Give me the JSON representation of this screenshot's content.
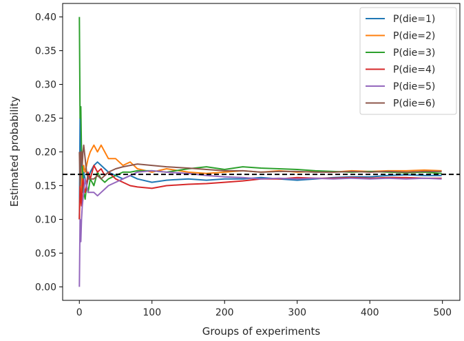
{
  "chart_data": {
    "type": "line",
    "title": "",
    "xlabel": "Groups of experiments",
    "ylabel": "Estimated probability",
    "xlim": [
      -23,
      524
    ],
    "ylim": [
      -0.02,
      0.42
    ],
    "x_ticks": [
      0,
      100,
      200,
      300,
      400,
      500
    ],
    "x_tick_labels": [
      "0",
      "100",
      "200",
      "300",
      "400",
      "500"
    ],
    "y_ticks": [
      0.0,
      0.05,
      0.1,
      0.15,
      0.2,
      0.25,
      0.3,
      0.35,
      0.4
    ],
    "y_tick_labels": [
      "0.00",
      "0.05",
      "0.10",
      "0.15",
      "0.20",
      "0.25",
      "0.30",
      "0.35",
      "0.40"
    ],
    "grid": false,
    "legend_position": "top-right",
    "reference_line": {
      "y": 0.1667,
      "style": "dashed",
      "color": "#000000"
    },
    "x": [
      0,
      1,
      2,
      3,
      4,
      5,
      6,
      8,
      10,
      12,
      15,
      20,
      25,
      30,
      35,
      40,
      50,
      60,
      70,
      80,
      100,
      120,
      150,
      175,
      200,
      225,
      250,
      275,
      300,
      325,
      350,
      375,
      400,
      425,
      450,
      475,
      499
    ],
    "series": [
      {
        "name": "P(die=1)",
        "color": "#1f77b4",
        "values": [
          0.1,
          0.25,
          0.2,
          0.15,
          0.16,
          0.14,
          0.17,
          0.16,
          0.15,
          0.16,
          0.17,
          0.18,
          0.185,
          0.18,
          0.175,
          0.17,
          0.165,
          0.16,
          0.165,
          0.16,
          0.155,
          0.158,
          0.16,
          0.158,
          0.16,
          0.16,
          0.162,
          0.16,
          0.158,
          0.16,
          0.162,
          0.163,
          0.163,
          0.165,
          0.166,
          0.165,
          0.165
        ]
      },
      {
        "name": "P(die=2)",
        "color": "#ff7f0e",
        "values": [
          0.1,
          0.15,
          0.13,
          0.14,
          0.18,
          0.17,
          0.18,
          0.17,
          0.18,
          0.19,
          0.2,
          0.21,
          0.2,
          0.21,
          0.2,
          0.19,
          0.19,
          0.18,
          0.185,
          0.175,
          0.17,
          0.175,
          0.17,
          0.168,
          0.17,
          0.172,
          0.17,
          0.172,
          0.17,
          0.171,
          0.17,
          0.172,
          0.171,
          0.172,
          0.172,
          0.173,
          0.172
        ]
      },
      {
        "name": "P(die=3)",
        "color": "#2ca02c",
        "values": [
          0.4,
          0.25,
          0.267,
          0.2,
          0.18,
          0.16,
          0.14,
          0.13,
          0.15,
          0.14,
          0.16,
          0.15,
          0.17,
          0.16,
          0.155,
          0.16,
          0.165,
          0.17,
          0.17,
          0.172,
          0.172,
          0.17,
          0.175,
          0.178,
          0.174,
          0.178,
          0.176,
          0.175,
          0.174,
          0.172,
          0.171,
          0.17,
          0.171,
          0.17,
          0.169,
          0.17,
          0.168
        ]
      },
      {
        "name": "P(die=4)",
        "color": "#d62728",
        "values": [
          0.1,
          0.15,
          0.13,
          0.12,
          0.15,
          0.16,
          0.15,
          0.14,
          0.15,
          0.17,
          0.16,
          0.18,
          0.17,
          0.175,
          0.165,
          0.17,
          0.16,
          0.155,
          0.15,
          0.148,
          0.146,
          0.15,
          0.152,
          0.153,
          0.155,
          0.157,
          0.16,
          0.16,
          0.162,
          0.161,
          0.161,
          0.162,
          0.161,
          0.162,
          0.162,
          0.161,
          0.161
        ]
      },
      {
        "name": "P(die=5)",
        "color": "#9467bd",
        "values": [
          0.0,
          0.1,
          0.067,
          0.1,
          0.12,
          0.13,
          0.14,
          0.16,
          0.15,
          0.14,
          0.14,
          0.14,
          0.135,
          0.14,
          0.145,
          0.15,
          0.155,
          0.16,
          0.165,
          0.17,
          0.172,
          0.17,
          0.168,
          0.165,
          0.163,
          0.162,
          0.16,
          0.161,
          0.16,
          0.161,
          0.16,
          0.161,
          0.16,
          0.161,
          0.16,
          0.161,
          0.16
        ]
      },
      {
        "name": "P(die=6)",
        "color": "#8c564b",
        "values": [
          0.2,
          0.15,
          0.2,
          0.2,
          0.18,
          0.2,
          0.21,
          0.19,
          0.17,
          0.16,
          0.16,
          0.16,
          0.165,
          0.16,
          0.165,
          0.17,
          0.175,
          0.178,
          0.18,
          0.182,
          0.18,
          0.178,
          0.176,
          0.174,
          0.172,
          0.172,
          0.17,
          0.171,
          0.171,
          0.17,
          0.17,
          0.171,
          0.17,
          0.171,
          0.17,
          0.171,
          0.171
        ]
      }
    ]
  }
}
